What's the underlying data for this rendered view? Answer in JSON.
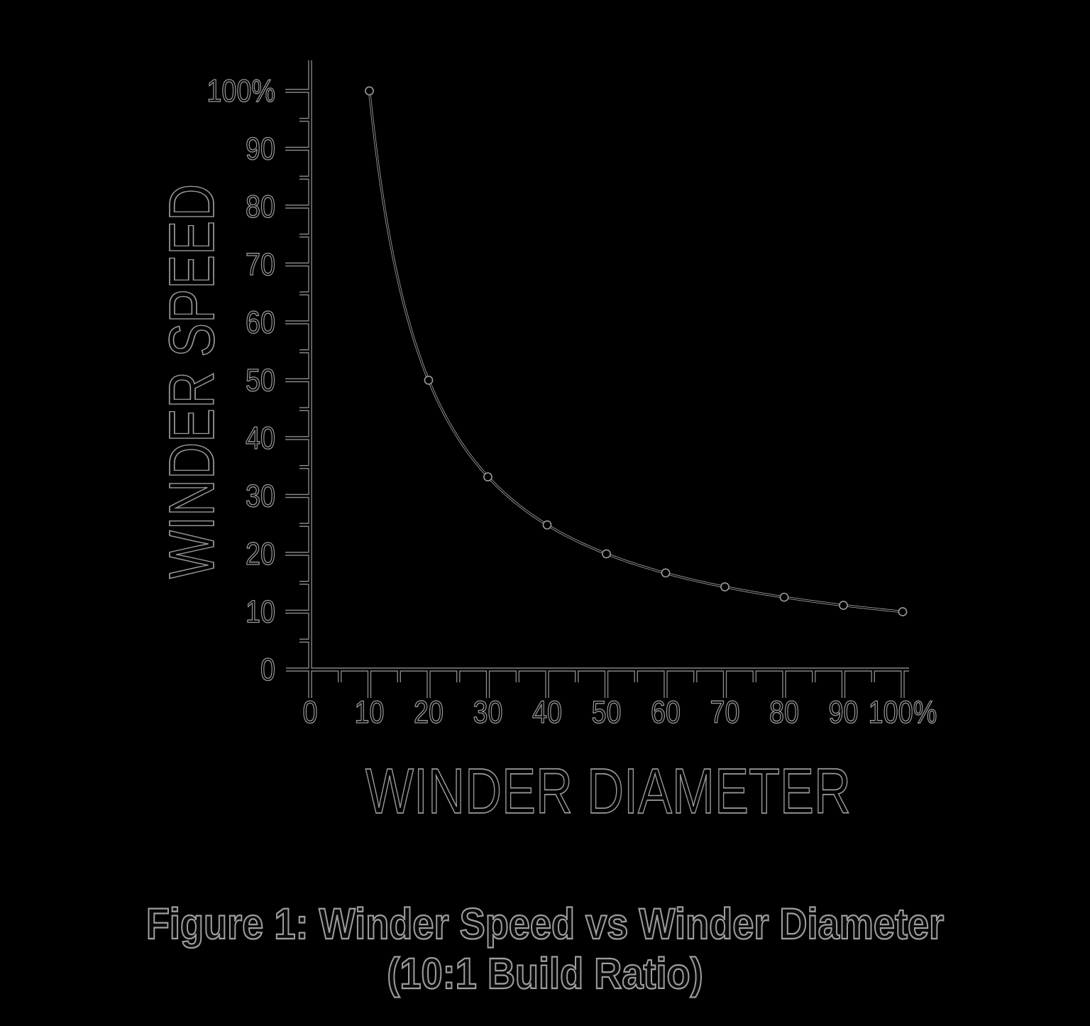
{
  "page": {
    "background_color": "#000000",
    "ink_color": "#000000",
    "edge_color": "#9a9a9a"
  },
  "figure": {
    "caption_line1": "Figure 1: Winder Speed vs Winder Diameter",
    "caption_line2": "(10:1 Build Ratio)"
  },
  "chart_data": {
    "type": "line",
    "title": "Winder Speed vs Winder Diameter",
    "xlabel": "WINDER DIAMETER",
    "ylabel": "WINDER SPEED",
    "unit": "%",
    "xlim": [
      0,
      100
    ],
    "ylim": [
      0,
      100
    ],
    "grid": false,
    "legend_position": "none",
    "build_ratio": 10,
    "x_ticks_major": [
      0,
      10,
      20,
      30,
      40,
      50,
      60,
      70,
      80,
      90,
      100
    ],
    "x_tick_labels": [
      "0",
      "10",
      "20",
      "30",
      "40",
      "50",
      "60",
      "70",
      "80",
      "90",
      "100%"
    ],
    "x_ticks_minor": [
      5,
      15,
      25,
      35,
      45,
      55,
      65,
      75,
      85,
      95
    ],
    "y_ticks_major": [
      0,
      10,
      20,
      30,
      40,
      50,
      60,
      70,
      80,
      90,
      100
    ],
    "y_tick_labels": [
      "0",
      "10",
      "20",
      "30",
      "40",
      "50",
      "60",
      "70",
      "80",
      "90",
      "100%"
    ],
    "y_ticks_minor": [
      5,
      15,
      25,
      35,
      45,
      55,
      65,
      75,
      85,
      95
    ],
    "series": [
      {
        "name": "winder speed (10:1 build ratio)",
        "points": [
          {
            "x": 10,
            "y": 100
          },
          {
            "x": 20,
            "y": 50
          },
          {
            "x": 30,
            "y": 33.3
          },
          {
            "x": 40,
            "y": 25
          },
          {
            "x": 50,
            "y": 20
          },
          {
            "x": 60,
            "y": 16.7
          },
          {
            "x": 70,
            "y": 14.3
          },
          {
            "x": 80,
            "y": 12.5
          },
          {
            "x": 90,
            "y": 11.1
          },
          {
            "x": 100,
            "y": 10
          }
        ]
      }
    ]
  }
}
